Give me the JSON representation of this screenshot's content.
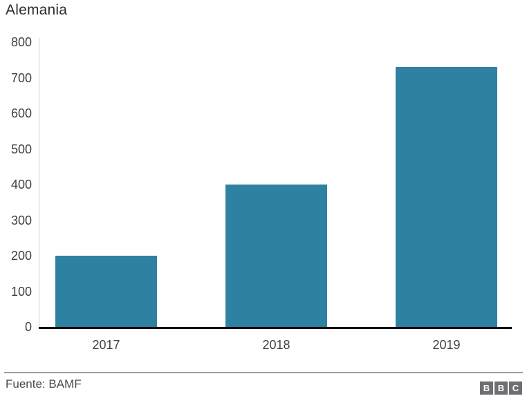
{
  "title": "Alemania",
  "colors": {
    "bar": "#2f81a2",
    "x_axis_line": "#0a0a0a",
    "y_axis_line": "#cccccc",
    "tick_text": "#404040",
    "footer_separator": "#2b2b2b"
  },
  "footer": {
    "source": "Fuente: BAMF",
    "logo_letters": [
      "B",
      "B",
      "C"
    ]
  },
  "chart_data": {
    "type": "bar",
    "title": "Alemania",
    "categories": [
      "2017",
      "2018",
      "2019"
    ],
    "values": [
      200,
      400,
      730
    ],
    "xlabel": "",
    "ylabel": "",
    "ylim": [
      0,
      800
    ],
    "yticks": [
      0,
      100,
      200,
      300,
      400,
      500,
      600,
      700,
      800
    ],
    "grid": false,
    "legend": false,
    "source": "Fuente: BAMF"
  }
}
